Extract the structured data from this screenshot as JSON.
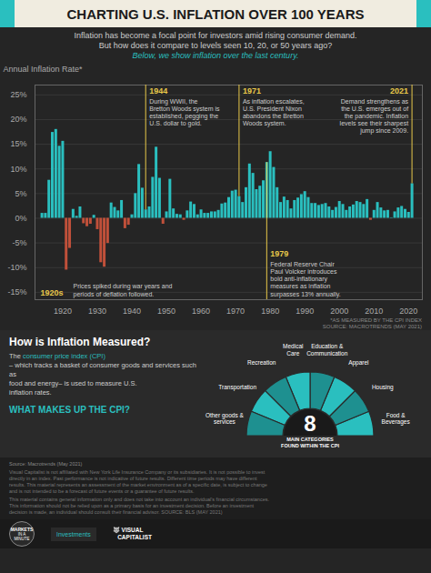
{
  "chart_data": {
    "type": "bar",
    "title": "CHARTING U.S. INFLATION OVER 100 YEARS",
    "subtitle": [
      "Inflation has become a focal point for investors amid rising consumer demand.",
      "But how does it compare to levels seen 10, 20, or 50 years ago?",
      "Below, we show inflation over the last century."
    ],
    "ylabel": "Annual Inflation Rate*",
    "note": "*AS MEASURED BY THE CPI INDEX\nSOURCE: MACROTRENDS (MAY 2021)",
    "x": [
      1914,
      1915,
      1916,
      1917,
      1918,
      1919,
      1920,
      1921,
      1922,
      1923,
      1924,
      1925,
      1926,
      1927,
      1928,
      1929,
      1930,
      1931,
      1932,
      1933,
      1934,
      1935,
      1936,
      1937,
      1938,
      1939,
      1940,
      1941,
      1942,
      1943,
      1944,
      1945,
      1946,
      1947,
      1948,
      1949,
      1950,
      1951,
      1952,
      1953,
      1954,
      1955,
      1956,
      1957,
      1958,
      1959,
      1960,
      1961,
      1962,
      1963,
      1964,
      1965,
      1966,
      1967,
      1968,
      1969,
      1970,
      1971,
      1972,
      1973,
      1974,
      1975,
      1976,
      1977,
      1978,
      1979,
      1980,
      1981,
      1982,
      1983,
      1984,
      1985,
      1986,
      1987,
      1988,
      1989,
      1990,
      1991,
      1992,
      1993,
      1994,
      1995,
      1996,
      1997,
      1998,
      1999,
      2000,
      2001,
      2002,
      2003,
      2004,
      2005,
      2006,
      2007,
      2008,
      2009,
      2010,
      2011,
      2012,
      2013,
      2014,
      2015,
      2016,
      2017,
      2018,
      2019,
      2020,
      2021
    ],
    "values": [
      1.0,
      1.0,
      7.7,
      17.4,
      18.0,
      14.6,
      15.6,
      -10.5,
      -6.1,
      1.8,
      0.4,
      2.3,
      -1.1,
      -1.7,
      -1.2,
      0.6,
      -2.3,
      -9.0,
      -9.9,
      -5.1,
      3.1,
      2.2,
      1.5,
      3.6,
      -2.1,
      -1.4,
      0.7,
      5.0,
      10.9,
      6.1,
      1.7,
      2.3,
      8.3,
      14.4,
      8.1,
      -1.2,
      1.3,
      7.9,
      1.9,
      0.8,
      0.7,
      -0.4,
      1.5,
      3.3,
      2.8,
      0.7,
      1.7,
      1.0,
      1.0,
      1.3,
      1.3,
      1.6,
      2.9,
      3.1,
      4.2,
      5.5,
      5.7,
      4.4,
      3.2,
      6.2,
      11.0,
      9.1,
      5.8,
      6.5,
      7.6,
      11.3,
      13.5,
      10.3,
      6.2,
      3.2,
      4.3,
      3.6,
      1.9,
      3.6,
      4.1,
      4.8,
      5.4,
      4.2,
      3.0,
      3.0,
      2.6,
      2.8,
      3.0,
      2.3,
      1.6,
      2.2,
      3.4,
      2.8,
      1.6,
      2.3,
      2.7,
      3.4,
      3.2,
      2.8,
      3.8,
      -0.4,
      1.6,
      3.2,
      2.1,
      1.5,
      1.6,
      0.1,
      1.3,
      2.1,
      2.4,
      1.8,
      1.2,
      7.0
    ],
    "colors": [
      "#2abfbf",
      "#2abfbf",
      "#2abfbf",
      "#2abfbf",
      "#2abfbf",
      "#2abfbf",
      "#2abfbf",
      "#c0503a",
      "#c0503a",
      "#2abfbf",
      "#2abfbf",
      "#2abfbf",
      "#c0503a",
      "#c0503a",
      "#c0503a",
      "#2abfbf",
      "#c0503a",
      "#c0503a",
      "#c0503a",
      "#c0503a",
      "#2abfbf",
      "#2abfbf",
      "#2abfbf",
      "#2abfbf",
      "#c0503a",
      "#c0503a",
      "#2abfbf",
      "#2abfbf",
      "#2abfbf",
      "#2abfbf",
      "#2abfbf",
      "#2abfbf",
      "#2abfbf",
      "#2abfbf",
      "#2abfbf",
      "#c0503a",
      "#2abfbf",
      "#2abfbf",
      "#2abfbf",
      "#2abfbf",
      "#2abfbf",
      "#c0503a",
      "#2abfbf",
      "#2abfbf",
      "#2abfbf",
      "#2abfbf",
      "#2abfbf",
      "#2abfbf",
      "#2abfbf",
      "#2abfbf",
      "#2abfbf",
      "#2abfbf",
      "#2abfbf",
      "#2abfbf",
      "#2abfbf",
      "#2abfbf",
      "#2abfbf",
      "#2abfbf",
      "#2abfbf",
      "#2abfbf",
      "#2abfbf",
      "#2abfbf",
      "#2abfbf",
      "#2abfbf",
      "#2abfbf",
      "#2abfbf",
      "#2abfbf",
      "#2abfbf",
      "#2abfbf",
      "#2abfbf",
      "#2abfbf",
      "#2abfbf",
      "#2abfbf",
      "#2abfbf",
      "#2abfbf",
      "#2abfbf",
      "#2abfbf",
      "#2abfbf",
      "#2abfbf",
      "#2abfbf",
      "#2abfbf",
      "#2abfbf",
      "#2abfbf",
      "#2abfbf",
      "#2abfbf",
      "#2abfbf",
      "#2abfbf",
      "#2abfbf",
      "#2abfbf",
      "#2abfbf",
      "#2abfbf",
      "#2abfbf",
      "#2abfbf",
      "#2abfbf",
      "#2abfbf",
      "#c0503a",
      "#2abfbf",
      "#2abfbf",
      "#2abfbf",
      "#2abfbf",
      "#2abfbf",
      "#2abfbf",
      "#2abfbf",
      "#2abfbf",
      "#2abfbf",
      "#2abfbf",
      "#2abfbf",
      "#2abfbf"
    ],
    "xlim": [
      1912,
      2024
    ],
    "xticks": [
      1920,
      1930,
      1940,
      1950,
      1960,
      1970,
      1980,
      1990,
      2000,
      2010,
      2020
    ],
    "ylim": [
      -16.5,
      27
    ],
    "yticks": [
      {
        "value": -15,
        "label": "-15%"
      },
      {
        "value": -10,
        "label": "-10%"
      },
      {
        "value": -5,
        "label": "-5%"
      },
      {
        "value": 0,
        "label": "0%"
      },
      {
        "value": 5,
        "label": "5%"
      },
      {
        "value": 10,
        "label": "10%"
      },
      {
        "value": 15,
        "label": "15%"
      },
      {
        "value": 20,
        "label": "20%"
      },
      {
        "value": 25,
        "label": "25%"
      }
    ],
    "grid": true,
    "annotations": [
      {
        "label": "1920s",
        "text": "Prices spiked during war years and\nperiods of deflation followed.",
        "color": "#e8c84a"
      },
      {
        "x": 1944,
        "label": "1944",
        "text": "During WWII, the\nBretton Woods system is\nestablished, pegging the\nU.S. dollar to gold.",
        "color": "#e8c84a"
      },
      {
        "x": 1971,
        "label": "1971",
        "text": "As inflation escalates,\nU.S. President Nixon\nabandons the Bretton\nWoods system.",
        "color": "#e8c84a"
      },
      {
        "x": 1979,
        "label": "1979",
        "text": "Federal Reserve Chair\nPaul Volcker introduces\nbold anti-inflationary\nmeasures as inflation\nsurpasses 13% annually.",
        "color": "#e8c84a"
      },
      {
        "x": 2021,
        "label": "2021",
        "text": "Demand strengthens as\nthe U.S. emerges out of\nthe pandemic. Inflation\nlevels see their sharpest\njump since 2009.",
        "color": "#e8c84a"
      }
    ]
  },
  "info": {
    "heading": "How is Inflation Measured?",
    "lead": "The ",
    "highlight": "consumer price index (CPI)",
    "lines": [
      "– which tracks a basket of consumer goods and services such as",
      "food and energy– is used to measure U.S.",
      "inflation rates."
    ],
    "cpi_heading": "WHAT MAKES UP THE CPI?",
    "cpi_count": "8",
    "cpi_caption": "MAIN CATEGORIES\nFOUND WITHIN THE CPI",
    "cpi_categories": [
      "Food &\nBeverages",
      "Housing",
      "Apparel",
      "Education &\nCommunication",
      "Medical\nCare",
      "Recreation",
      "Transportation",
      "Other goods &\nservices"
    ],
    "cpi_colors": [
      "#2abfbf",
      "#1e9090"
    ]
  },
  "footer": {
    "source": "Source: Macrotrends (May 2021)",
    "disclaimer": [
      "Visual Capitalist is not affiliated with New York Life Insurance Company or its subsidiaries. It is not possible to invest\ndirectly in an index. Past performance is not indicative of future results. Different time periods may have different\nresults. This material represents an assessment of the market environment as of a specific date, is subject to change\nand is not intended to be a forecast of future events or a guarantee of future results.",
      "This material contains general information only and does not take into account an individual's financial circumstances.\nThis information should not be relied upon as a primary basis for an investment decision. Before an investment\ndecision is made, an individual should consult their financial advisor. SOURCE: BLS (MAY 2021)"
    ],
    "logos": [
      "MARKETS",
      "IN A\nMINUTE",
      "Investments",
      "🐺 VISUAL\n   CAPITALIST"
    ]
  }
}
